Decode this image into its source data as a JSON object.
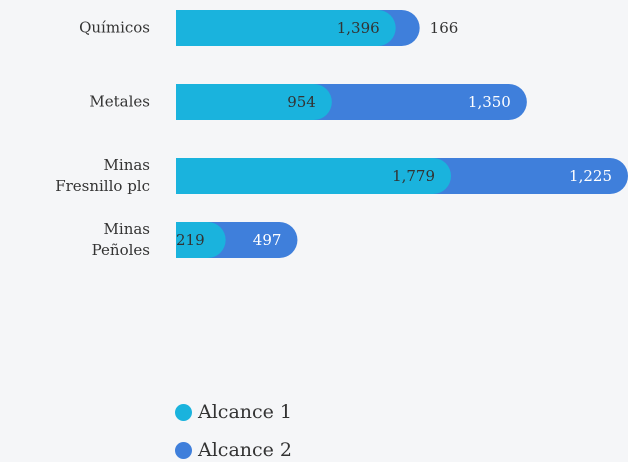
{
  "chart_data": {
    "type": "bar",
    "orientation": "horizontal",
    "stacked": true,
    "categories": [
      "Químicos",
      "Metales",
      "Minas\nFresnillo plc",
      "Minas\nPeñoles"
    ],
    "series": [
      {
        "name": "Alcance 1",
        "color": "#1ab3dd",
        "values": [
          1396,
          954,
          1779,
          219
        ],
        "value_labels": [
          "1,396",
          "954",
          "1,779",
          "219"
        ]
      },
      {
        "name": "Alcance 2",
        "color": "#3f7fdb",
        "values": [
          166,
          1350,
          1225,
          497
        ],
        "value_labels": [
          "166",
          "1,350",
          "1,225",
          "497"
        ]
      }
    ],
    "legend": "bottom"
  }
}
